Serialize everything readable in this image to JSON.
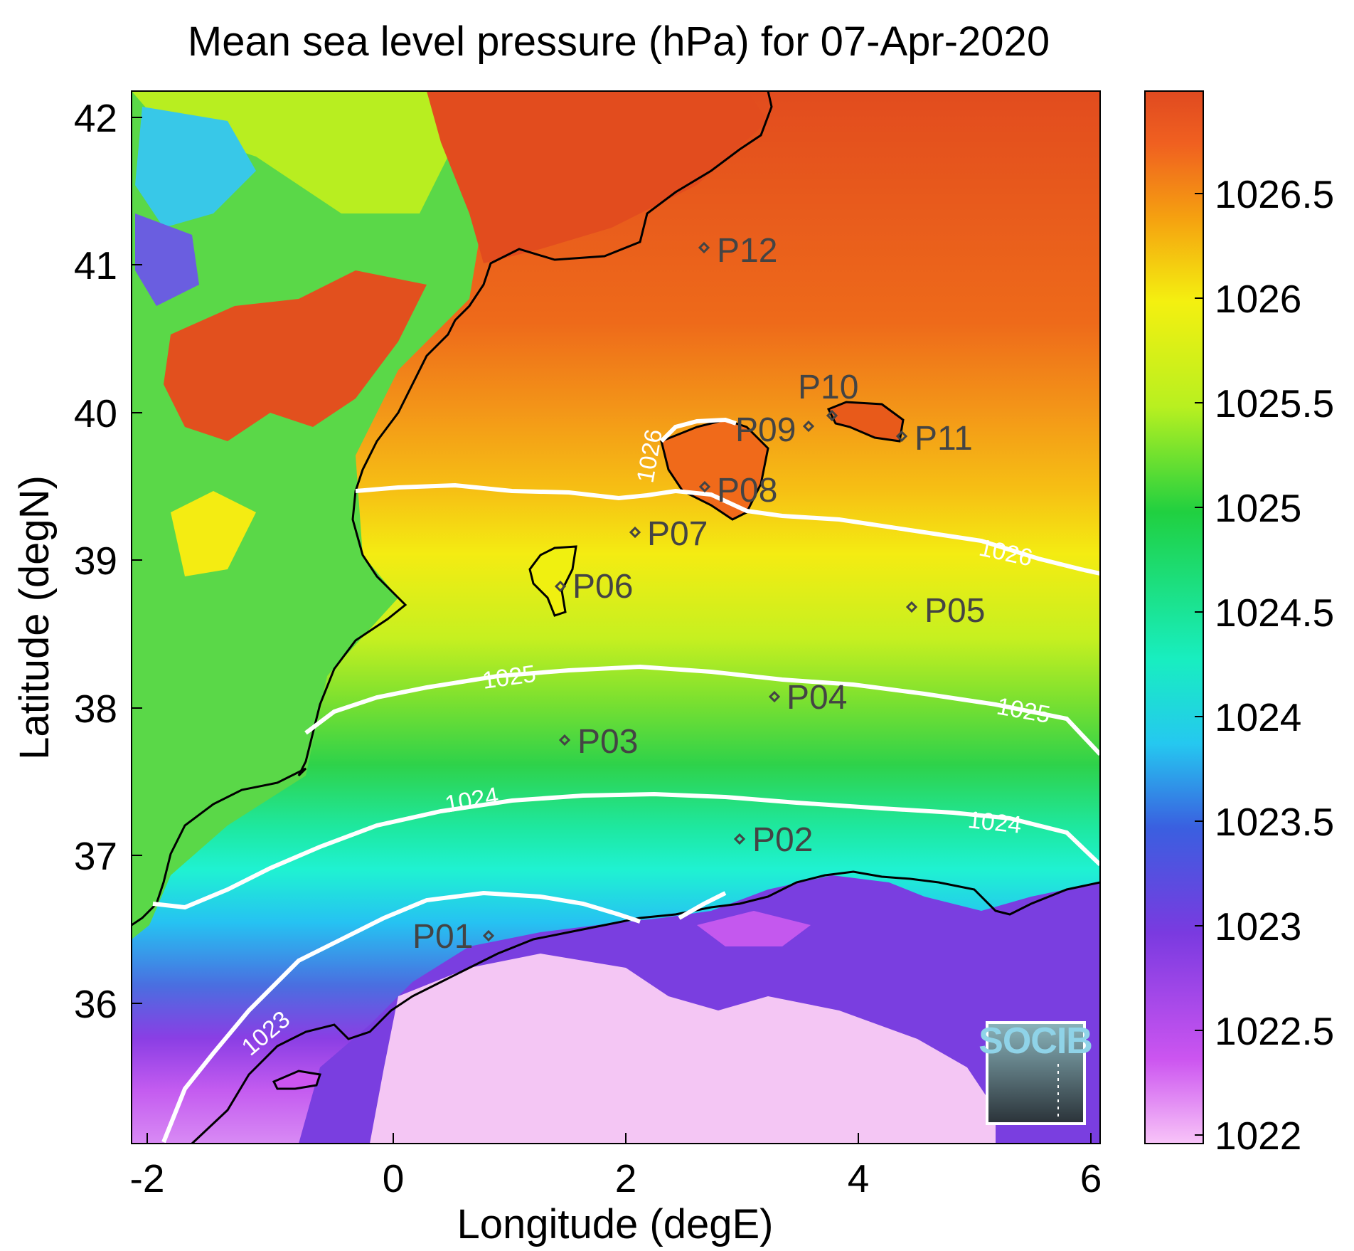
{
  "title": "Mean sea level pressure (hPa) for 07-Apr-2020",
  "xlabel": "Longitude (degE)",
  "ylabel": "Latitude (degN)",
  "x_ticks": [
    "-2",
    "0",
    "2",
    "4",
    "6"
  ],
  "y_ticks": [
    "42",
    "41",
    "40",
    "39",
    "38",
    "37",
    "36"
  ],
  "colorbar": {
    "ticks": [
      "1026.5",
      "1026",
      "1025.5",
      "1025",
      "1024.5",
      "1024",
      "1023.5",
      "1023",
      "1022.5",
      "1022"
    ],
    "range": [
      1022,
      1027
    ],
    "colors": [
      "#f8c4f8",
      "#cc55f0",
      "#7a3ae0",
      "#3a5fe0",
      "#25c8f0",
      "#18eec0",
      "#20d040",
      "#b8f020",
      "#f4f010",
      "#f5a010",
      "#f06020",
      "#e04a20"
    ]
  },
  "stations": [
    {
      "id": "P01",
      "label": "P01"
    },
    {
      "id": "P02",
      "label": "P02"
    },
    {
      "id": "P03",
      "label": "P03"
    },
    {
      "id": "P04",
      "label": "P04"
    },
    {
      "id": "P05",
      "label": "P05"
    },
    {
      "id": "P06",
      "label": "P06"
    },
    {
      "id": "P07",
      "label": "P07"
    },
    {
      "id": "P08",
      "label": "P08"
    },
    {
      "id": "P09",
      "label": "P09"
    },
    {
      "id": "P10",
      "label": "P10"
    },
    {
      "id": "P11",
      "label": "P11"
    },
    {
      "id": "P12",
      "label": "P12"
    }
  ],
  "contour_labels": {
    "c1023": "1023",
    "c1024": "1024",
    "c1025": "1025",
    "c1026": "1026"
  },
  "logo": "SOCIB"
}
